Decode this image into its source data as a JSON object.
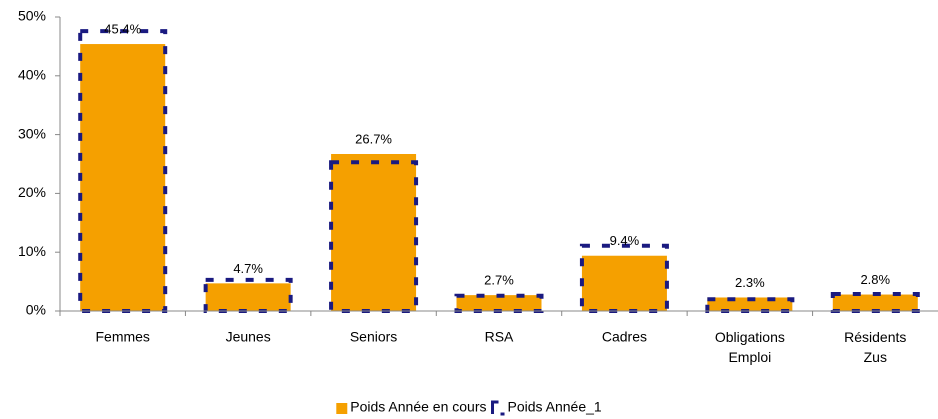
{
  "chart_data": {
    "type": "bar",
    "categories": [
      "Femmes",
      "Jeunes",
      "Seniors",
      "RSA",
      "Cadres",
      "Obligations Emploi",
      "Résidents Zus"
    ],
    "series": [
      {
        "name": "Poids Année en cours",
        "color": "#f5a000",
        "values": [
          45.4,
          4.7,
          26.7,
          2.7,
          9.4,
          2.3,
          2.8
        ],
        "value_labels": [
          "45.4%",
          "4.7%",
          "26.7%",
          "2.7%",
          "9.4%",
          "2.3%",
          "2.8%"
        ]
      },
      {
        "name": "Poids Année_1",
        "color": "#1a1a80",
        "values": [
          47.6,
          5.3,
          25.3,
          2.6,
          11.1,
          2.0,
          2.9
        ]
      }
    ],
    "ylim": [
      0,
      50
    ],
    "yticks": [
      {
        "value": 0,
        "label": "0%"
      },
      {
        "value": 10,
        "label": "10%"
      },
      {
        "value": 20,
        "label": "20%"
      },
      {
        "value": 30,
        "label": "30%"
      },
      {
        "value": 40,
        "label": "40%"
      },
      {
        "value": 50,
        "label": "50%"
      }
    ],
    "grid": false,
    "legend": "bottom"
  }
}
